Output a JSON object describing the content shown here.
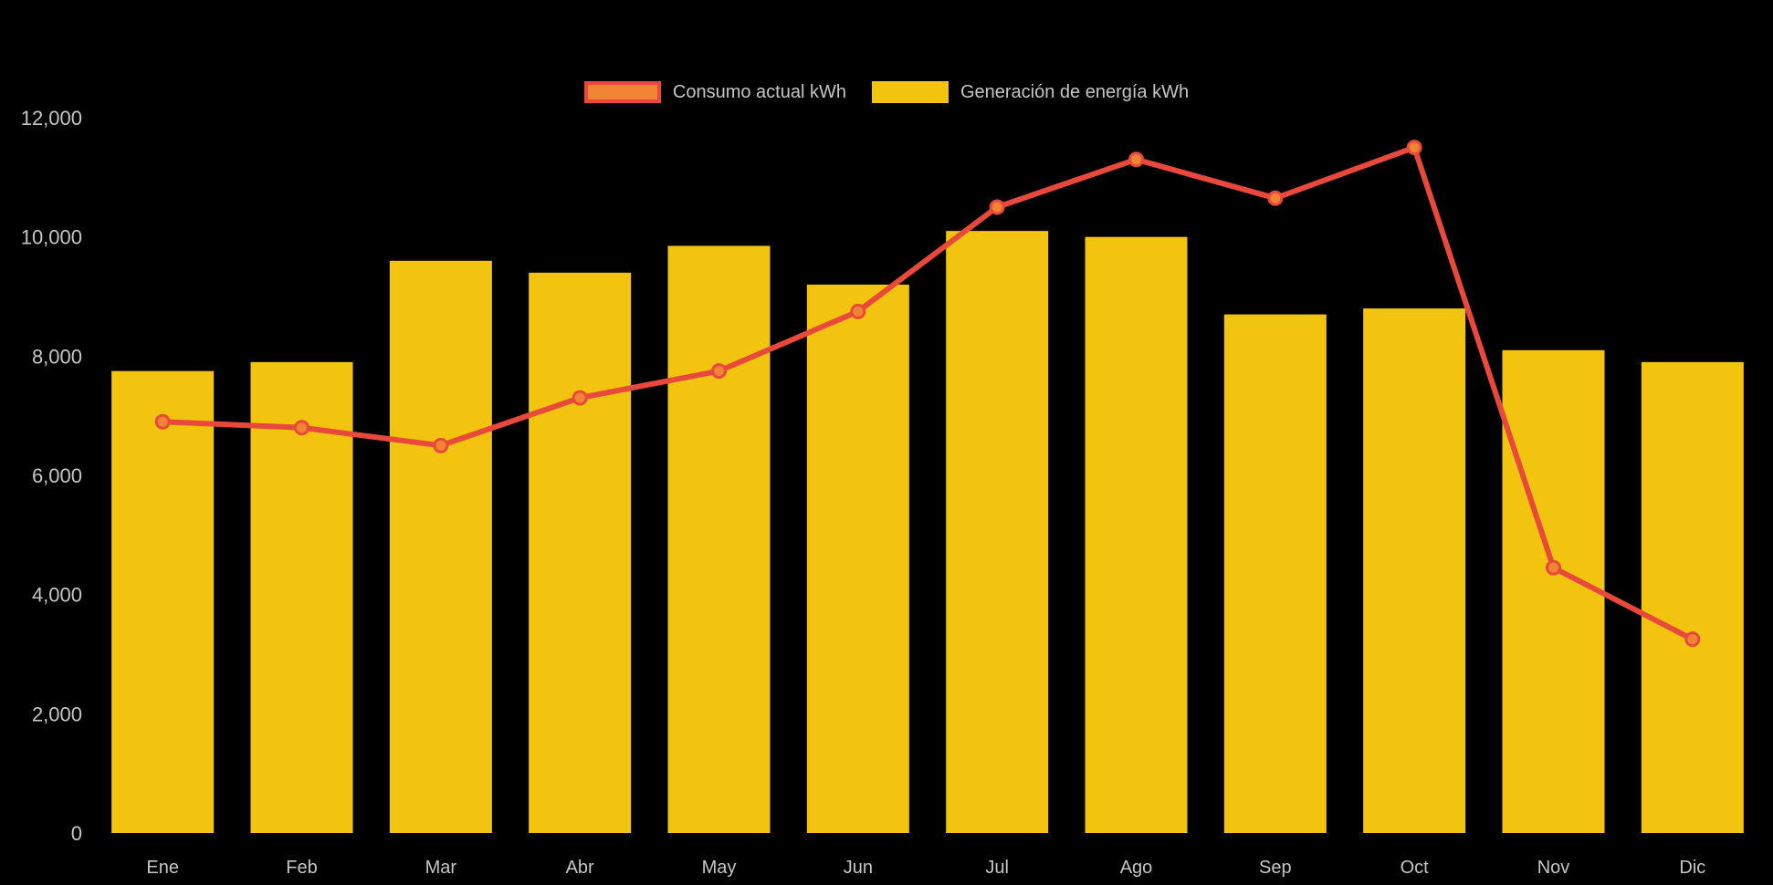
{
  "page": {
    "background": "#000000",
    "axis_text_color": "#c6c6c6"
  },
  "chart_data": {
    "type": "combo",
    "title": "",
    "xlabel": "",
    "ylabel": "",
    "categories": [
      "Ene",
      "Feb",
      "Mar",
      "Abr",
      "May",
      "Jun",
      "Jul",
      "Ago",
      "Sep",
      "Oct",
      "Nov",
      "Dic"
    ],
    "series": [
      {
        "name": "Consumo actual kWh",
        "type": "line",
        "color": "#e8493a",
        "point_fill": "#ef8432",
        "values": [
          6900,
          6800,
          6500,
          7300,
          7750,
          8750,
          10500,
          11300,
          10650,
          11500,
          4450,
          3250
        ]
      },
      {
        "name": "Generación de energía kWh",
        "type": "bar",
        "color": "#f2c40f",
        "values": [
          7750,
          7900,
          9600,
          9400,
          9850,
          9200,
          10100,
          10000,
          8700,
          8800,
          8100,
          7900
        ]
      }
    ],
    "ylim": [
      0,
      12000
    ],
    "yticks": [
      0,
      2000,
      4000,
      6000,
      8000,
      10000,
      12000
    ],
    "ytick_labels": [
      "0",
      "2,000",
      "4,000",
      "6,000",
      "8,000",
      "10,000",
      "12,000"
    ],
    "grid": false,
    "legend_position": "top"
  }
}
